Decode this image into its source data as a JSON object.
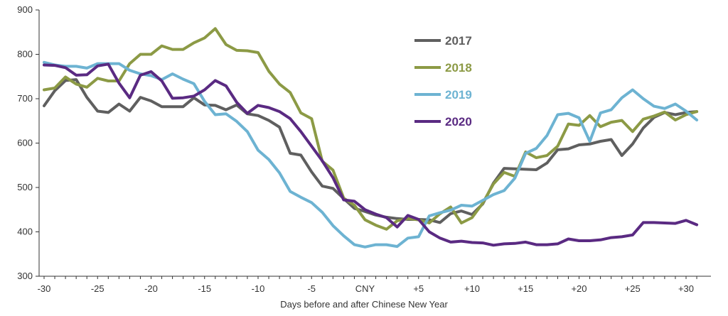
{
  "chart_data": {
    "type": "line",
    "title": "",
    "xlabel": "Days before and after Chinese New Year",
    "ylabel": "",
    "ylim": [
      300,
      900
    ],
    "yticks": [
      300,
      400,
      500,
      600,
      700,
      800,
      900
    ],
    "xlim": [
      -30,
      32
    ],
    "xticks": [
      {
        "x": -30,
        "label": "-30"
      },
      {
        "x": -25,
        "label": "-25"
      },
      {
        "x": -20,
        "label": "-20"
      },
      {
        "x": -15,
        "label": "-15"
      },
      {
        "x": -10,
        "label": "-10"
      },
      {
        "x": -5,
        "label": "-5"
      },
      {
        "x": 0,
        "label": "CNY"
      },
      {
        "x": 5,
        "label": "+5"
      },
      {
        "x": 10,
        "label": "+10"
      },
      {
        "x": 15,
        "label": "+15"
      },
      {
        "x": 20,
        "label": "+20"
      },
      {
        "x": 25,
        "label": "+25"
      },
      {
        "x": 30,
        "label": "+30"
      }
    ],
    "grid": false,
    "legend_position": "top-right",
    "x": [
      -30,
      -29,
      -28,
      -27,
      -26,
      -25,
      -24,
      -23,
      -22,
      -21,
      -20,
      -19,
      -18,
      -17,
      -16,
      -15,
      -14,
      -13,
      -12,
      -11,
      -10,
      -9,
      -8,
      -7,
      -6,
      -5,
      -4,
      -3,
      -2,
      -1,
      0,
      1,
      2,
      3,
      4,
      5,
      6,
      7,
      8,
      9,
      10,
      11,
      12,
      13,
      14,
      15,
      16,
      17,
      18,
      19,
      20,
      21,
      22,
      23,
      24,
      25,
      26,
      27,
      28,
      29,
      30,
      31
    ],
    "series": [
      {
        "name": "2017",
        "color": "#5f5f5f",
        "values": [
          684,
          718,
          741,
          743,
          703,
          672,
          669,
          688,
          672,
          703,
          695,
          682,
          682,
          682,
          702,
          686,
          685,
          675,
          686,
          666,
          662,
          651,
          636,
          577,
          573,
          535,
          503,
          498,
          475,
          453,
          446,
          438,
          433,
          430,
          428,
          428,
          427,
          421,
          441,
          447,
          439,
          463,
          510,
          543,
          542,
          541,
          540,
          555,
          585,
          587,
          596,
          598,
          604,
          608,
          572,
          598,
          634,
          658,
          669,
          664,
          669,
          671
        ]
      },
      {
        "name": "2018",
        "color": "#8c9a45",
        "values": [
          720,
          724,
          749,
          733,
          726,
          746,
          740,
          740,
          779,
          800,
          800,
          819,
          811,
          811,
          826,
          837,
          858,
          822,
          809,
          808,
          804,
          762,
          733,
          714,
          668,
          655,
          559,
          539,
          476,
          460,
          427,
          415,
          406,
          425,
          430,
          427,
          420,
          441,
          456,
          420,
          432,
          465,
          508,
          534,
          525,
          580,
          567,
          572,
          593,
          643,
          640,
          662,
          637,
          647,
          651,
          626,
          654,
          661,
          670,
          652,
          664,
          671
        ]
      },
      {
        "name": "2019",
        "color": "#6db3d2",
        "values": [
          782,
          776,
          773,
          773,
          769,
          779,
          779,
          779,
          764,
          756,
          752,
          743,
          756,
          744,
          734,
          694,
          664,
          666,
          649,
          626,
          584,
          563,
          533,
          491,
          478,
          466,
          444,
          414,
          391,
          371,
          366,
          371,
          371,
          367,
          386,
          389,
          436,
          443,
          449,
          460,
          458,
          471,
          484,
          493,
          521,
          577,
          588,
          617,
          664,
          667,
          657,
          604,
          668,
          675,
          702,
          720,
          700,
          683,
          678,
          688,
          672,
          652
        ]
      },
      {
        "name": "2020",
        "color": "#5a2a82",
        "values": [
          776,
          775,
          770,
          753,
          754,
          774,
          778,
          735,
          702,
          753,
          761,
          740,
          701,
          702,
          706,
          720,
          741,
          729,
          692,
          667,
          685,
          680,
          671,
          655,
          626,
          593,
          560,
          522,
          472,
          469,
          450,
          440,
          432,
          411,
          437,
          428,
          400,
          386,
          377,
          379,
          376,
          375,
          370,
          373,
          374,
          377,
          371,
          371,
          373,
          384,
          380,
          380,
          382,
          387,
          389,
          393,
          421,
          421,
          420,
          419,
          426,
          416
        ]
      }
    ]
  }
}
